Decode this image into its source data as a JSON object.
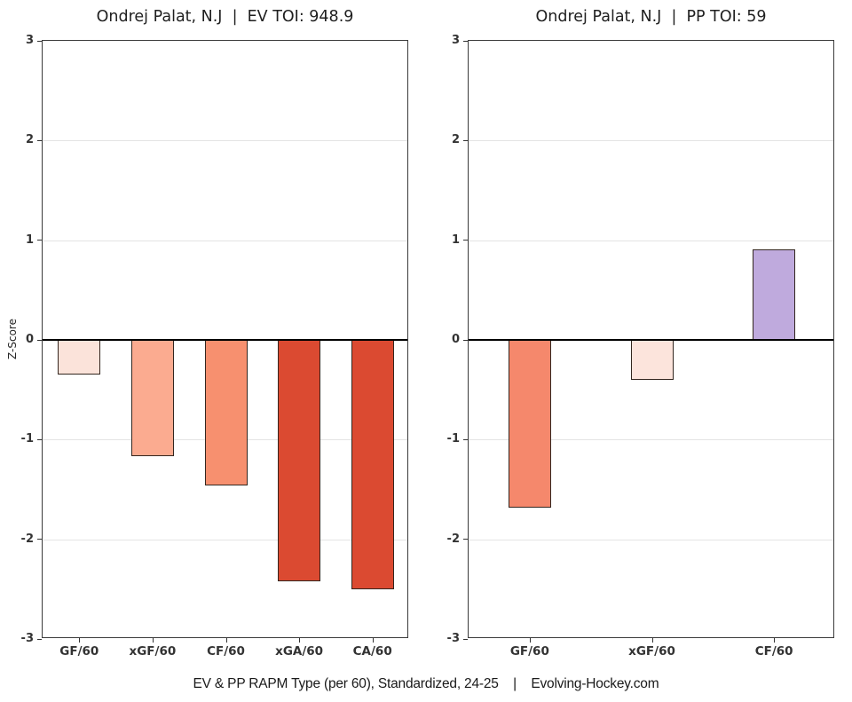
{
  "page": {
    "background": "#ffffff",
    "text_color": "#1f1f1f",
    "grid_color": "#e4e4e4",
    "axis_color": "#3b3b3b",
    "zero_line_color": "#000000"
  },
  "y_axis": {
    "label": "Z-Score",
    "ticks": [
      3,
      2,
      1,
      0,
      -1,
      -2,
      -3
    ],
    "min": -3,
    "max": 3
  },
  "chart_data": [
    {
      "type": "bar",
      "title": "Ondrej Palat, N.J  |  EV TOI: 948.9",
      "categories": [
        "GF/60",
        "xGF/60",
        "CF/60",
        "xGA/60",
        "CA/60"
      ],
      "values": [
        -0.35,
        -1.17,
        -1.46,
        -2.42,
        -2.5
      ],
      "colors": [
        "#fbe3da",
        "#fbab90",
        "#f7906f",
        "#db4a31",
        "#db4a31"
      ],
      "xlabel": "",
      "ylabel": "Z-Score",
      "ylim": [
        -3,
        3
      ],
      "grid": "horizontal light gray at integer z-scores, black zero line"
    },
    {
      "type": "bar",
      "title": "Ondrej Palat, N.J  |  PP TOI: 59",
      "categories": [
        "GF/60",
        "xGF/60",
        "CF/60"
      ],
      "values": [
        -1.68,
        -0.4,
        0.91
      ],
      "colors": [
        "#f5886c",
        "#fce4dc",
        "#bfaadd"
      ],
      "xlabel": "",
      "ylabel": "",
      "ylim": [
        -3,
        3
      ],
      "grid": "horizontal light gray at integer z-scores, black zero line"
    }
  ],
  "footer": {
    "text": "EV & PP RAPM Type (per 60), Standardized, 24-25    |    Evolving-Hockey.com"
  }
}
